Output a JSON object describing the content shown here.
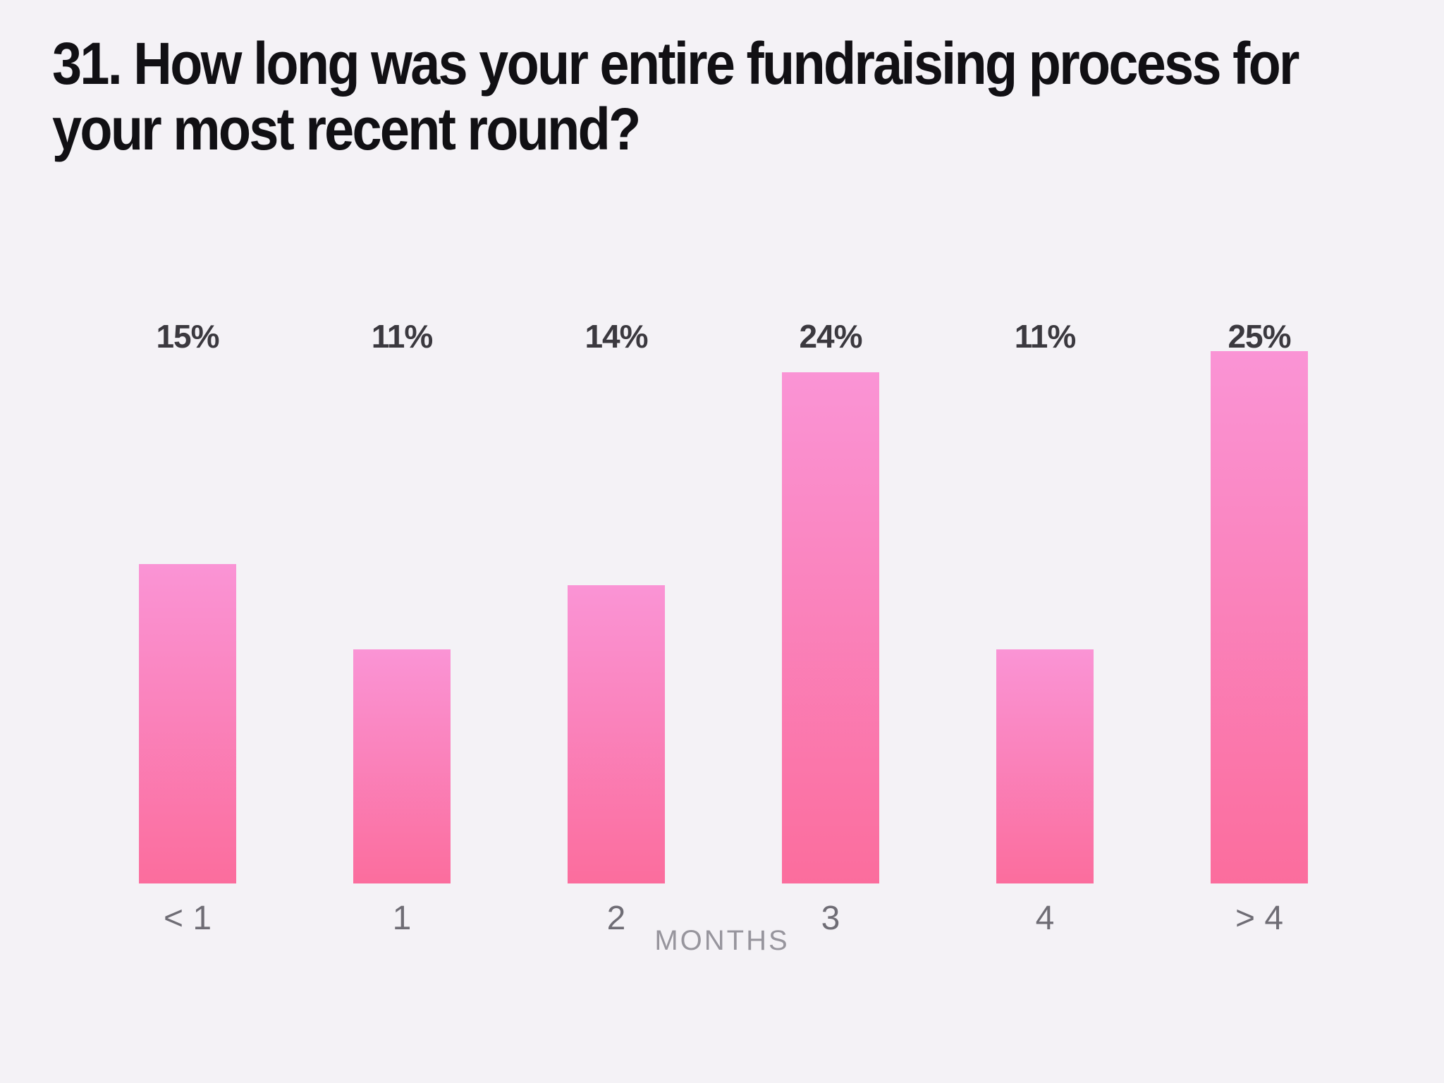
{
  "page": {
    "background": "#F4F2F6"
  },
  "title_lines": [
    "31. How long was your entire fundraising process for",
    "your most recent round?"
  ],
  "chart_data": {
    "type": "bar",
    "title": "31. How long was your entire fundraising process for your most recent round?",
    "categories": [
      "< 1",
      "1",
      "2",
      "3",
      "4",
      "> 4"
    ],
    "values": [
      15,
      11,
      14,
      24,
      11,
      25
    ],
    "value_suffix": "%",
    "xlabel": "MONTHS",
    "ylabel": "",
    "ylim": [
      0,
      25
    ],
    "grid": false,
    "legend": false,
    "bar_gradient_top": "#FA94D5",
    "bar_gradient_bottom": "#FB6D9D",
    "title_color": "#111014",
    "value_label_color": "#3B393F",
    "tick_label_color": "#6F6D75",
    "axis_label_color": "#97959D"
  }
}
